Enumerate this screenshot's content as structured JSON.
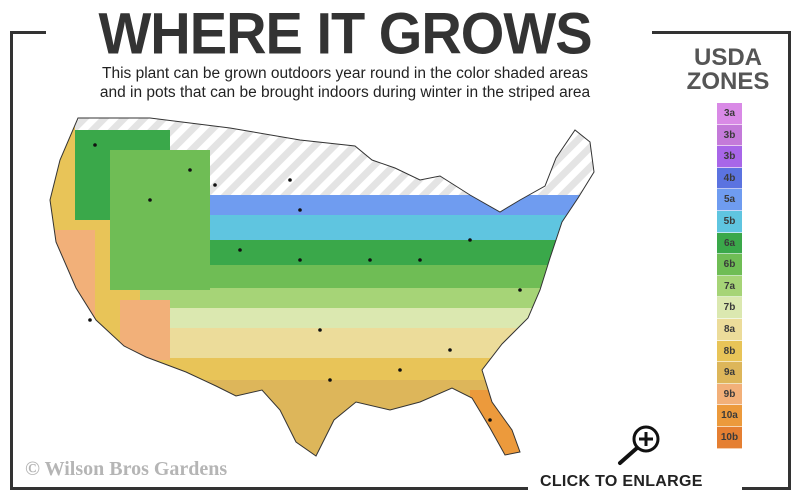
{
  "header": {
    "title": "WHERE IT GROWS",
    "subtitle_line1": "This plant can be grown outdoors year round in the color shaded areas",
    "subtitle_line2": "and in pots that can be brought indoors during winter in the striped area"
  },
  "legend": {
    "title_line1": "USDA",
    "title_line2": "ZONES",
    "zones": [
      {
        "label": "3a",
        "color": "#d98ae6"
      },
      {
        "label": "3b",
        "color": "#c47ad9"
      },
      {
        "label": "3b",
        "color": "#a866e8"
      },
      {
        "label": "4b",
        "color": "#5b73e0"
      },
      {
        "label": "5a",
        "color": "#6f9cf0"
      },
      {
        "label": "5b",
        "color": "#5fc5e0"
      },
      {
        "label": "6a",
        "color": "#3aa84a"
      },
      {
        "label": "6b",
        "color": "#6fbd55"
      },
      {
        "label": "7a",
        "color": "#a6d477"
      },
      {
        "label": "7b",
        "color": "#dbe8b0"
      },
      {
        "label": "8a",
        "color": "#ecdc9a"
      },
      {
        "label": "8b",
        "color": "#e8c458"
      },
      {
        "label": "9a",
        "color": "#ddb65a"
      },
      {
        "label": "9b",
        "color": "#f2b079"
      },
      {
        "label": "10a",
        "color": "#ec9a3c"
      },
      {
        "label": "10b",
        "color": "#e57f32"
      }
    ]
  },
  "footer": {
    "watermark": "© Wilson Bros Gardens",
    "enlarge_label": "CLICK TO ENLARGE"
  },
  "icons": {
    "enlarge": "magnifier-plus-icon"
  }
}
